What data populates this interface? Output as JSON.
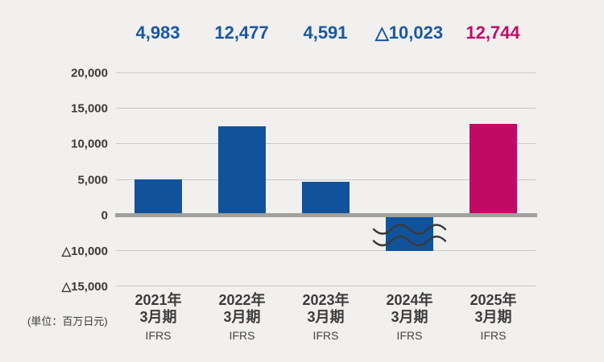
{
  "chart_data": {
    "type": "bar",
    "title": "",
    "unit_label": "(単位：百万日元)",
    "categories": [
      "2021年3月期",
      "2022年3月期",
      "2023年3月期",
      "2024年3月期",
      "2025年3月期"
    ],
    "x_tick_lines": [
      [
        "2021年",
        "3月期"
      ],
      [
        "2022年",
        "3月期"
      ],
      [
        "2023年",
        "3月期"
      ],
      [
        "2024年",
        "3月期"
      ],
      [
        "2025年",
        "3月期"
      ]
    ],
    "x_sub_labels": [
      "IFRS",
      "IFRS",
      "IFRS",
      "IFRS",
      "IFRS"
    ],
    "values": [
      4983,
      12477,
      4591,
      -10023,
      12744
    ],
    "value_labels": [
      "4,983",
      "12,477",
      "4,591",
      "△10,023",
      "12,744"
    ],
    "bar_colors": [
      "#11529d",
      "#11529d",
      "#11529d",
      "#11529d",
      "#c00a64"
    ],
    "value_label_colors": [
      "#1a58a2",
      "#1a58a2",
      "#1a58a2",
      "#1a58a2",
      "#c40b66"
    ],
    "y_ticks": [
      {
        "label": "20,000",
        "value": 20000
      },
      {
        "label": "15,000",
        "value": 15000
      },
      {
        "label": "10,000",
        "value": 10000
      },
      {
        "label": "5,000",
        "value": 5000
      },
      {
        "label": "0",
        "value": 0
      },
      {
        "label": "△10,000",
        "value": -10000
      },
      {
        "label": "△15,000",
        "value": -15000
      }
    ],
    "ylim": [
      -15000,
      20000
    ],
    "grid": true,
    "legend": false,
    "negative_format": "triangle",
    "axis_break": {
      "between": [
        0,
        -10000
      ],
      "style": "double-wave",
      "on_bar_index": 3
    }
  },
  "colors": {
    "background": "#f1f0ee",
    "gridline": "#c9c8c5",
    "zero_line": "#a0a09d",
    "axis_text": "#3b3b3b",
    "break_stroke": "#3a3a38",
    "bar_blue": "#11529d",
    "bar_magenta": "#c00a64"
  }
}
